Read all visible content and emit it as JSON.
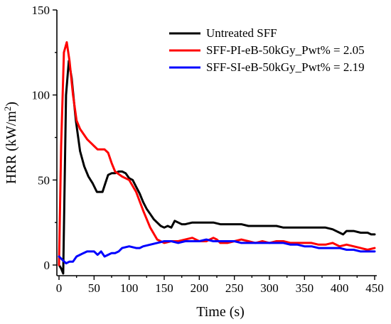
{
  "chart_data": {
    "type": "line",
    "xlabel": "Time (s)",
    "ylabel": "HRR (kW/m²)",
    "ylabel_main": "HRR (kW/m",
    "ylabel_sup": "2",
    "ylabel_end": ")",
    "xlim": [
      -8,
      452
    ],
    "ylim": [
      0,
      150
    ],
    "xticks": [
      0,
      50,
      100,
      150,
      200,
      250,
      300,
      350,
      400,
      450
    ],
    "yticks": [
      0,
      50,
      100,
      150
    ],
    "xtick_labels": [
      "0",
      "50",
      "100",
      "150",
      "200",
      "250",
      "300",
      "350",
      "400",
      "450"
    ],
    "ytick_labels": [
      "0",
      "50",
      "100",
      "150"
    ],
    "grid": false,
    "legend_position": "top-right",
    "series": [
      {
        "name": "Untreated SFF",
        "color": "#000000",
        "x": [
          0,
          3,
          6,
          10,
          14,
          18,
          24,
          30,
          36,
          42,
          48,
          54,
          58,
          62,
          66,
          70,
          75,
          80,
          85,
          90,
          95,
          100,
          105,
          110,
          115,
          120,
          125,
          130,
          135,
          140,
          145,
          150,
          155,
          160,
          165,
          170,
          175,
          180,
          190,
          200,
          210,
          220,
          230,
          240,
          250,
          260,
          270,
          280,
          290,
          300,
          310,
          320,
          330,
          340,
          350,
          360,
          370,
          380,
          390,
          400,
          405,
          410,
          420,
          430,
          440,
          445,
          450
        ],
        "y": [
          0,
          -2,
          -5,
          100,
          120,
          110,
          85,
          67,
          58,
          52,
          48,
          43,
          43,
          43,
          48,
          53,
          54,
          54,
          55,
          55,
          54,
          51,
          50,
          46,
          42,
          37,
          33,
          30,
          27,
          25,
          23,
          22,
          23,
          22,
          26,
          25,
          24,
          24,
          25,
          25,
          25,
          25,
          24,
          24,
          24,
          24,
          23,
          23,
          23,
          23,
          23,
          22,
          22,
          22,
          22,
          22,
          22,
          22,
          21,
          19,
          18,
          20,
          20,
          19,
          19,
          18,
          18
        ]
      },
      {
        "name": "SFF-PI-eB-50kGy_Pwt% = 2.05",
        "color": "#ff0000",
        "x": [
          0,
          3,
          7,
          11,
          15,
          20,
          25,
          30,
          40,
          50,
          55,
          60,
          65,
          70,
          75,
          80,
          90,
          100,
          110,
          120,
          130,
          140,
          150,
          160,
          170,
          180,
          190,
          200,
          210,
          220,
          225,
          230,
          240,
          250,
          260,
          270,
          280,
          290,
          300,
          310,
          320,
          330,
          340,
          350,
          360,
          370,
          380,
          390,
          400,
          410,
          420,
          430,
          440,
          450
        ],
        "y": [
          0,
          70,
          125,
          131,
          120,
          100,
          85,
          80,
          74,
          70,
          68,
          68,
          68,
          66,
          60,
          55,
          52,
          50,
          43,
          32,
          22,
          15,
          13,
          14,
          14,
          15,
          16,
          14,
          14,
          16,
          15,
          13,
          13,
          14,
          15,
          14,
          13,
          14,
          13,
          14,
          14,
          13,
          13,
          13,
          13,
          12,
          12,
          13,
          11,
          12,
          11,
          10,
          9,
          10
        ]
      },
      {
        "name": "SFF-SI-eB-50kGy_Pwt% = 2.19",
        "color": "#0000ff",
        "x": [
          0,
          5,
          10,
          15,
          20,
          25,
          30,
          35,
          40,
          50,
          55,
          60,
          65,
          70,
          75,
          80,
          85,
          90,
          100,
          110,
          115,
          120,
          130,
          140,
          150,
          160,
          170,
          180,
          190,
          200,
          210,
          220,
          230,
          240,
          250,
          260,
          270,
          280,
          290,
          300,
          310,
          320,
          330,
          340,
          350,
          360,
          370,
          380,
          390,
          400,
          410,
          420,
          430,
          440,
          450
        ],
        "y": [
          5,
          3,
          1,
          2,
          2,
          5,
          6,
          7,
          8,
          8,
          6,
          8,
          5,
          6,
          7,
          7,
          8,
          10,
          11,
          10,
          10,
          11,
          12,
          13,
          14,
          14,
          13,
          14,
          14,
          14,
          15,
          14,
          14,
          14,
          14,
          13,
          13,
          13,
          13,
          13,
          13,
          13,
          12,
          12,
          11,
          11,
          10,
          10,
          10,
          10,
          9,
          9,
          8,
          8,
          8
        ]
      }
    ]
  }
}
